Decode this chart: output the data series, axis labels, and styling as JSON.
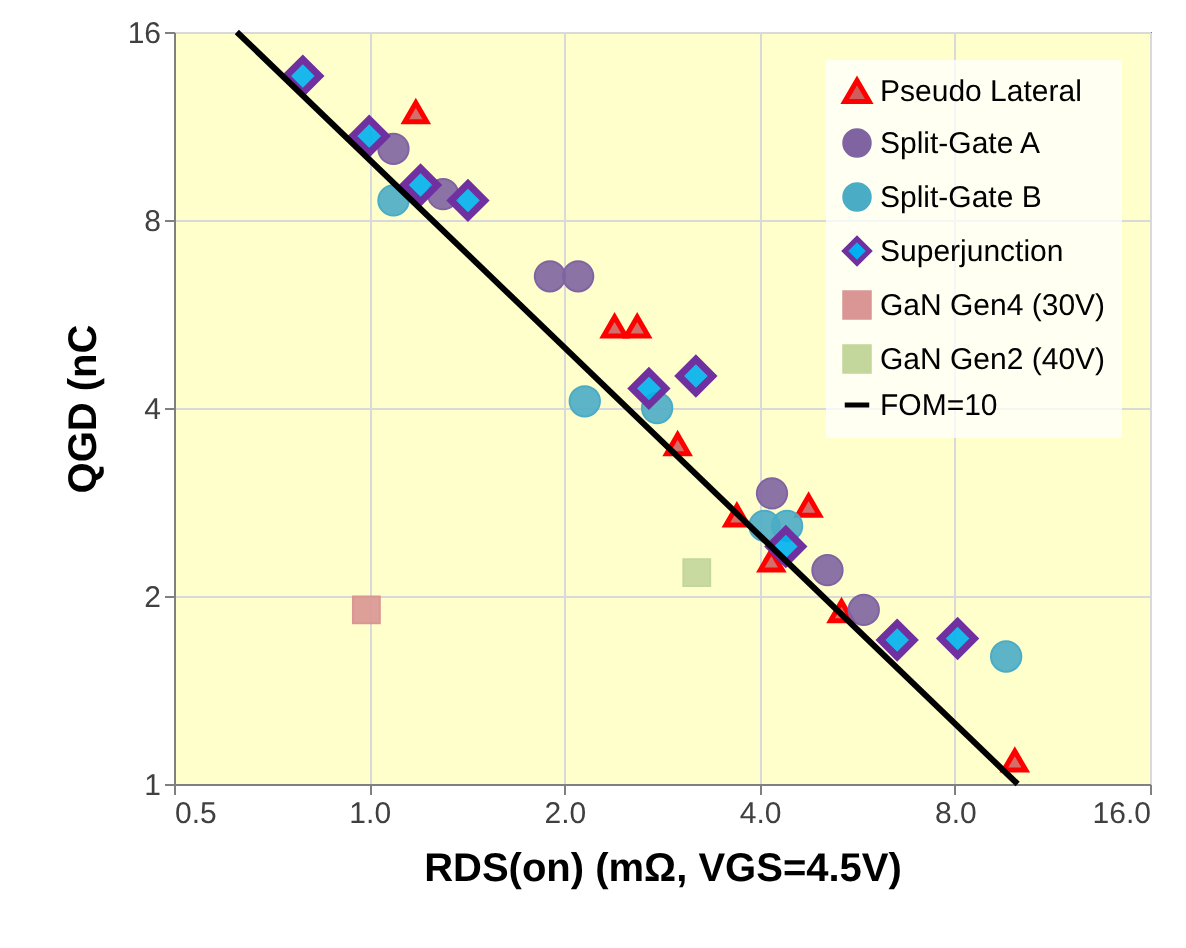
{
  "chart_data": {
    "type": "scatter",
    "xlabel": "RDS(on) (mΩ, VGS=4.5V)",
    "ylabel": "QGD (nC",
    "log": "xy",
    "grid": true,
    "legend": "top right",
    "xlim": [
      0.5,
      16
    ],
    "ylim": [
      1,
      16
    ],
    "xticks": [
      0.5,
      {
        "value": 1,
        "label": "1.0"
      },
      {
        "value": 2,
        "label": "2.0"
      },
      {
        "value": 4,
        "label": "4.0"
      },
      {
        "value": 8,
        "label": "8.0"
      },
      {
        "value": 16,
        "label": "16.0"
      }
    ],
    "yticks": [
      1,
      2,
      4,
      8,
      16
    ],
    "series": [
      {
        "name": "Pseudo Lateral",
        "color": "#ff0000",
        "marker": "triangle",
        "x": [
          1.18,
          2.39,
          2.59,
          2.99,
          3.69,
          4.76,
          4.17,
          5.35,
          9.9
        ],
        "values": [
          11.9,
          5.4,
          5.4,
          3.5,
          2.69,
          2.79,
          2.28,
          1.89,
          1.09
        ]
      },
      {
        "name": "Split-Gate A",
        "color": "#8064a2",
        "marker": "circle",
        "x": [
          1.09,
          1.3,
          1.9,
          2.1,
          4.18,
          5.09,
          5.79
        ],
        "values": [
          10.4,
          8.8,
          6.5,
          6.5,
          2.92,
          2.2,
          1.9
        ]
      },
      {
        "name": "Split-Gate B",
        "color": "#4bacc6",
        "marker": "circle",
        "x": [
          1.09,
          2.15,
          2.78,
          4.07,
          4.41,
          9.6
        ],
        "values": [
          8.6,
          4.1,
          4.0,
          2.59,
          2.59,
          1.6
        ]
      },
      {
        "name": "Superjunction",
        "color": "#7030a0",
        "marker": "diamond",
        "x": [
          0.79,
          1.0,
          1.2,
          1.42,
          2.7,
          3.19,
          4.39,
          6.52,
          8.08
        ],
        "values": [
          13.6,
          10.9,
          9.1,
          8.6,
          4.3,
          4.5,
          2.4,
          1.7,
          1.71
        ]
      },
      {
        "name": "GaN Gen4 (30V)",
        "color": "#d99694",
        "marker": "square",
        "x": [
          0.99
        ],
        "values": [
          1.9
        ]
      },
      {
        "name": "GaN Gen2 (40V)",
        "color": "#c3d69b",
        "marker": "square",
        "x": [
          3.2
        ],
        "values": [
          2.18
        ]
      },
      {
        "name": "FOM=10",
        "color": "#000000",
        "type": "line",
        "marker": "none",
        "line_style": "solid",
        "x": [
          0.625,
          10
        ],
        "values": [
          16,
          1
        ]
      }
    ]
  }
}
